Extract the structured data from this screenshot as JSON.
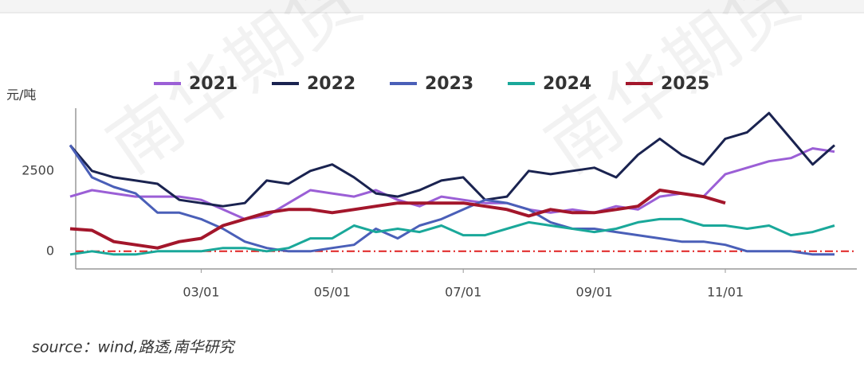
{
  "chart_data": {
    "type": "line",
    "watermark": "南华期货",
    "y_label": "元/吨",
    "source": "source：wind,路透,南华研究",
    "categories": [
      null,
      null,
      null,
      null,
      null,
      null,
      "03/01",
      null,
      null,
      null,
      null,
      null,
      "05/01",
      null,
      null,
      null,
      null,
      null,
      "07/01",
      null,
      null,
      null,
      null,
      null,
      "09/01",
      null,
      null,
      null,
      null,
      null,
      "11/01",
      null,
      null,
      null,
      null,
      null
    ],
    "ylim": [
      -550,
      4600
    ],
    "yticks": [
      0,
      2500
    ],
    "zero_line_color": "#e02020",
    "series": [
      {
        "name": "2021",
        "color": "#9b5fd6",
        "values": [
          1700,
          1900,
          1800,
          1700,
          1700,
          1700,
          1600,
          1300,
          1000,
          1100,
          1500,
          1900,
          1800,
          1700,
          1900,
          1600,
          1400,
          1700,
          1600,
          1500,
          1500,
          1300,
          1200,
          1300,
          1200,
          1400,
          1300,
          1700,
          1800,
          1700,
          2400,
          2600,
          2800,
          2900,
          3200,
          3100
        ]
      },
      {
        "name": "2022",
        "color": "#1a2350",
        "values": [
          3300,
          2500,
          2300,
          2200,
          2100,
          1600,
          1500,
          1400,
          1500,
          2200,
          2100,
          2500,
          2700,
          2300,
          1800,
          1700,
          1900,
          2200,
          2300,
          1600,
          1700,
          2500,
          2400,
          2500,
          2600,
          2300,
          3000,
          3500,
          3000,
          2700,
          3500,
          3700,
          4300,
          3500,
          2700,
          3300
        ]
      },
      {
        "name": "2023",
        "color": "#4a5fb8",
        "values": [
          3300,
          2300,
          2000,
          1800,
          1200,
          1200,
          1000,
          700,
          300,
          100,
          0,
          0,
          100,
          200,
          700,
          400,
          800,
          1000,
          1300,
          1600,
          1500,
          1300,
          900,
          700,
          700,
          600,
          500,
          400,
          300,
          300,
          200,
          0,
          0,
          0,
          -100,
          -100
        ]
      },
      {
        "name": "2024",
        "color": "#1aa89a",
        "values": [
          -100,
          0,
          -100,
          -100,
          0,
          0,
          0,
          100,
          100,
          0,
          100,
          400,
          400,
          800,
          600,
          700,
          600,
          800,
          500,
          500,
          700,
          900,
          800,
          700,
          600,
          700,
          900,
          1000,
          1000,
          800,
          800,
          700,
          800,
          500,
          600,
          800
        ]
      },
      {
        "name": "2025",
        "color": "#a3162b",
        "values": [
          700,
          650,
          300,
          200,
          100,
          300,
          400,
          800,
          1000,
          1200,
          1300,
          1300,
          1200,
          1300,
          1400,
          1500,
          1500,
          1500,
          1500,
          1400,
          1300,
          1100,
          1300,
          1200,
          1200,
          1300,
          1400,
          1900,
          1800,
          1700,
          1500,
          null,
          null,
          null,
          null,
          null
        ]
      }
    ]
  }
}
